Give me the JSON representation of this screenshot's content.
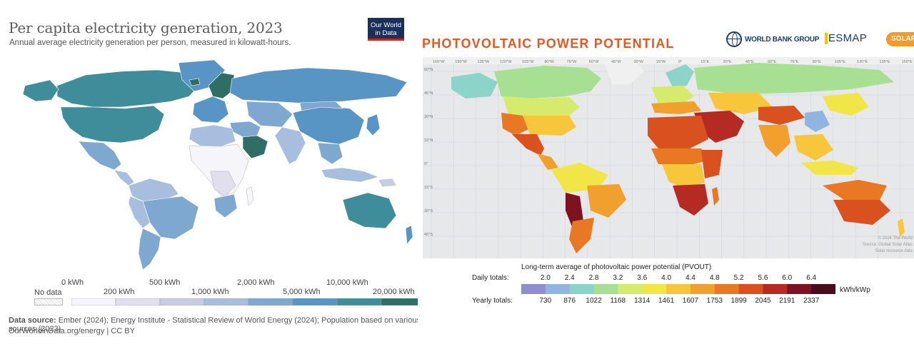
{
  "owid": {
    "title": "Per capita electricity generation, 2023",
    "subtitle": "Annual average electricity generation per person, measured in kilowatt-hours.",
    "logo_line1": "Our World",
    "logo_line2": "in Data",
    "legend": {
      "no_data": "No data",
      "upper_labels": [
        "0 kWh",
        "500 kWh",
        "2,000 kWh",
        "10,000 kWh"
      ],
      "lower_labels": [
        "200 kWh",
        "1,000 kWh",
        "5,000 kWh",
        "20,000 kWh"
      ],
      "bins": [
        "0 kWh",
        "200 kWh",
        "500 kWh",
        "1,000 kWh",
        "2,000 kWh",
        "5,000 kWh",
        "10,000 kWh",
        "20,000 kWh"
      ],
      "colors": [
        "#f6f5fa",
        "#e1dfee",
        "#c8cbe4",
        "#a8bede",
        "#7fa8d1",
        "#5995c4",
        "#3f8c9b",
        "#2e6e65"
      ]
    },
    "source_label": "Data source:",
    "source_text": "Ember (2024); Energy Institute - Statistical Review of World Energy (2024); Population based on various sources (2023)",
    "url": "OurWorldinData.org/energy",
    "license": "| CC BY"
  },
  "pv": {
    "title": "PHOTOVOLTAIC  POWER  POTENTIAL",
    "wbg_label": "WORLD BANK GROUP",
    "esmap_label": "ESMAP",
    "solar_label": "SOLAR",
    "longitude_labels": [
      "165°W",
      "150°W",
      "135°W",
      "120°W",
      "105°W",
      "90°W",
      "75°W",
      "60°W",
      "45°W",
      "30°W",
      "15°W",
      "0°",
      "15°E",
      "30°E",
      "45°E",
      "60°E",
      "75°E",
      "90°E",
      "105°E",
      "120°E",
      "135°E",
      "150°E"
    ],
    "latitude_labels": [
      "60°N",
      "45°N",
      "30°N",
      "15°N",
      "0°",
      "15°S",
      "30°S",
      "45°S"
    ],
    "credit_lines": [
      "© 2024 The World",
      "Source: Global Solar Atlas",
      "Solar resource data"
    ],
    "legend": {
      "title": "Long-term average of photovoltaic power potential (PVOUT)",
      "daily_label": "Daily totals:",
      "yearly_label": "Yearly totals:",
      "daily": [
        "2.0",
        "2.4",
        "2.8",
        "3.2",
        "3.6",
        "4.0",
        "4.4",
        "4.8",
        "5.2",
        "5.6",
        "6.0",
        "6.4"
      ],
      "yearly": [
        "730",
        "876",
        "1022",
        "1168",
        "1314",
        "1461",
        "1607",
        "1753",
        "1899",
        "2045",
        "2191",
        "2337"
      ],
      "unit": "kWh/kWp",
      "colors": [
        "#8f8fcf",
        "#90b5e0",
        "#8cd3c9",
        "#a7df93",
        "#d6eb6e",
        "#f1e547",
        "#f7c63a",
        "#f2a02d",
        "#e97825",
        "#d8511f",
        "#b52b23",
        "#7d1220",
        "#4a0b1c"
      ]
    }
  }
}
